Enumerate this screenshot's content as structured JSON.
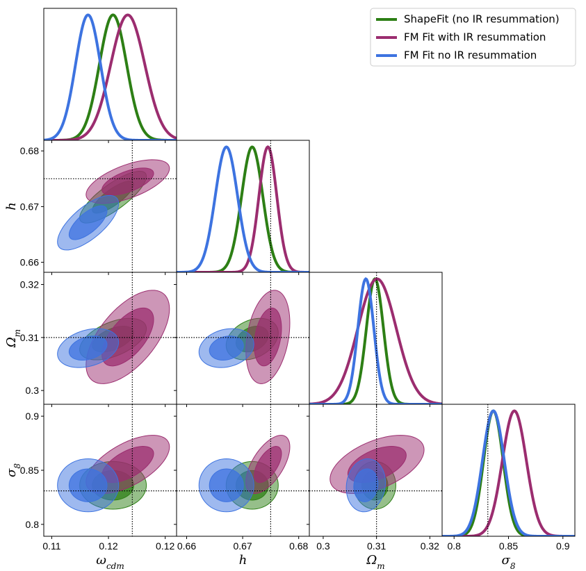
{
  "chart_data": {
    "type": "corner",
    "params": [
      {
        "symbol": "ω",
        "sub": "cdm",
        "lim": [
          0.1093,
          0.121
        ],
        "ticks": [
          0.11,
          {
            "value": 0.115,
            "label": "0.12"
          },
          0.12
        ],
        "truth": 0.1171
      },
      {
        "symbol": "h",
        "lim": [
          0.6582,
          0.6819
        ],
        "ticks": [
          0.66,
          0.67,
          0.68
        ],
        "truth": 0.675
      },
      {
        "symbol": "Ω",
        "sub": "m",
        "lim": [
          0.2974,
          0.3223
        ],
        "ticks": [
          0.3,
          0.31,
          0.32
        ],
        "truth": 0.31
      },
      {
        "symbol": "σ",
        "sub": "8",
        "lim": [
          0.789,
          0.911
        ],
        "ticks": [
          0.8,
          0.85,
          0.9
        ],
        "truth": 0.831
      }
    ],
    "series": [
      {
        "name": "ShapeFit (no IR resummation)",
        "color": "#2d7f15",
        "mean": [
          0.1154,
          0.6717,
          0.3097,
          0.8361
        ],
        "sigma": [
          0.0012,
          0.0019,
          0.0016,
          0.009
        ],
        "corr": [
          [
            1,
            0.8,
            0.5,
            0
          ],
          [
            0.8,
            1,
            0.3,
            0
          ],
          [
            0.5,
            0.3,
            1,
            0
          ],
          [
            0,
            0,
            0,
            1
          ]
        ]
      },
      {
        "name": "FM Fit with IR resummation",
        "color": "#9b2d6f",
        "mean": [
          0.1167,
          0.6745,
          0.3101,
          0.8554
        ],
        "sigma": [
          0.0015,
          0.0016,
          0.0036,
          0.011
        ],
        "corr": [
          [
            1,
            0.6,
            0.6,
            0.6
          ],
          [
            0.6,
            1,
            0.3,
            0.6
          ],
          [
            0.6,
            0.3,
            1,
            0.5
          ],
          [
            0.6,
            0.6,
            0.5,
            1
          ]
        ]
      },
      {
        "name": "FM Fit no IR resummation",
        "color": "#3d73e0",
        "mean": [
          0.1132,
          0.6671,
          0.308,
          0.8361
        ],
        "sigma": [
          0.0011,
          0.002,
          0.0015,
          0.01
        ],
        "corr": [
          [
            1,
            0.7,
            0.3,
            0
          ],
          [
            0.7,
            1,
            0.2,
            0
          ],
          [
            0.3,
            0.2,
            1,
            0.1
          ],
          [
            0,
            0,
            0.1,
            1
          ]
        ]
      }
    ],
    "legend": "upper right"
  }
}
